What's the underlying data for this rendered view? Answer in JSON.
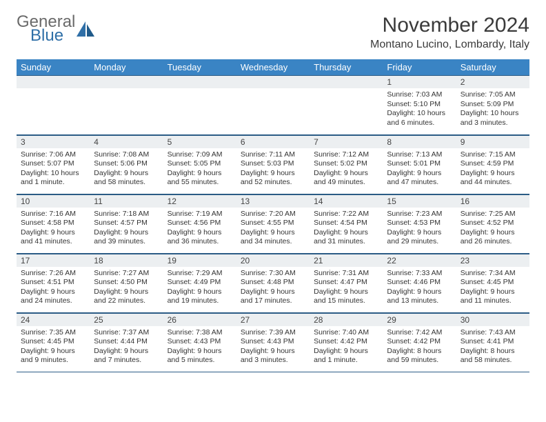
{
  "brand": {
    "line1": "General",
    "line2": "Blue"
  },
  "title": "November 2024",
  "location": "Montano Lucino, Lombardy, Italy",
  "colors": {
    "header_bg": "#3a84c4",
    "header_text": "#ffffff",
    "daynum_bg": "#eceff1",
    "border": "#2a5b85",
    "logo_gray": "#6a6a6a",
    "logo_blue": "#2f6fa7"
  },
  "weekdays": [
    "Sunday",
    "Monday",
    "Tuesday",
    "Wednesday",
    "Thursday",
    "Friday",
    "Saturday"
  ],
  "weeks": [
    [
      {
        "n": "",
        "lines": []
      },
      {
        "n": "",
        "lines": []
      },
      {
        "n": "",
        "lines": []
      },
      {
        "n": "",
        "lines": []
      },
      {
        "n": "",
        "lines": []
      },
      {
        "n": "1",
        "lines": [
          "Sunrise: 7:03 AM",
          "Sunset: 5:10 PM",
          "Daylight: 10 hours and 6 minutes."
        ]
      },
      {
        "n": "2",
        "lines": [
          "Sunrise: 7:05 AM",
          "Sunset: 5:09 PM",
          "Daylight: 10 hours and 3 minutes."
        ]
      }
    ],
    [
      {
        "n": "3",
        "lines": [
          "Sunrise: 7:06 AM",
          "Sunset: 5:07 PM",
          "Daylight: 10 hours and 1 minute."
        ]
      },
      {
        "n": "4",
        "lines": [
          "Sunrise: 7:08 AM",
          "Sunset: 5:06 PM",
          "Daylight: 9 hours and 58 minutes."
        ]
      },
      {
        "n": "5",
        "lines": [
          "Sunrise: 7:09 AM",
          "Sunset: 5:05 PM",
          "Daylight: 9 hours and 55 minutes."
        ]
      },
      {
        "n": "6",
        "lines": [
          "Sunrise: 7:11 AM",
          "Sunset: 5:03 PM",
          "Daylight: 9 hours and 52 minutes."
        ]
      },
      {
        "n": "7",
        "lines": [
          "Sunrise: 7:12 AM",
          "Sunset: 5:02 PM",
          "Daylight: 9 hours and 49 minutes."
        ]
      },
      {
        "n": "8",
        "lines": [
          "Sunrise: 7:13 AM",
          "Sunset: 5:01 PM",
          "Daylight: 9 hours and 47 minutes."
        ]
      },
      {
        "n": "9",
        "lines": [
          "Sunrise: 7:15 AM",
          "Sunset: 4:59 PM",
          "Daylight: 9 hours and 44 minutes."
        ]
      }
    ],
    [
      {
        "n": "10",
        "lines": [
          "Sunrise: 7:16 AM",
          "Sunset: 4:58 PM",
          "Daylight: 9 hours and 41 minutes."
        ]
      },
      {
        "n": "11",
        "lines": [
          "Sunrise: 7:18 AM",
          "Sunset: 4:57 PM",
          "Daylight: 9 hours and 39 minutes."
        ]
      },
      {
        "n": "12",
        "lines": [
          "Sunrise: 7:19 AM",
          "Sunset: 4:56 PM",
          "Daylight: 9 hours and 36 minutes."
        ]
      },
      {
        "n": "13",
        "lines": [
          "Sunrise: 7:20 AM",
          "Sunset: 4:55 PM",
          "Daylight: 9 hours and 34 minutes."
        ]
      },
      {
        "n": "14",
        "lines": [
          "Sunrise: 7:22 AM",
          "Sunset: 4:54 PM",
          "Daylight: 9 hours and 31 minutes."
        ]
      },
      {
        "n": "15",
        "lines": [
          "Sunrise: 7:23 AM",
          "Sunset: 4:53 PM",
          "Daylight: 9 hours and 29 minutes."
        ]
      },
      {
        "n": "16",
        "lines": [
          "Sunrise: 7:25 AM",
          "Sunset: 4:52 PM",
          "Daylight: 9 hours and 26 minutes."
        ]
      }
    ],
    [
      {
        "n": "17",
        "lines": [
          "Sunrise: 7:26 AM",
          "Sunset: 4:51 PM",
          "Daylight: 9 hours and 24 minutes."
        ]
      },
      {
        "n": "18",
        "lines": [
          "Sunrise: 7:27 AM",
          "Sunset: 4:50 PM",
          "Daylight: 9 hours and 22 minutes."
        ]
      },
      {
        "n": "19",
        "lines": [
          "Sunrise: 7:29 AM",
          "Sunset: 4:49 PM",
          "Daylight: 9 hours and 19 minutes."
        ]
      },
      {
        "n": "20",
        "lines": [
          "Sunrise: 7:30 AM",
          "Sunset: 4:48 PM",
          "Daylight: 9 hours and 17 minutes."
        ]
      },
      {
        "n": "21",
        "lines": [
          "Sunrise: 7:31 AM",
          "Sunset: 4:47 PM",
          "Daylight: 9 hours and 15 minutes."
        ]
      },
      {
        "n": "22",
        "lines": [
          "Sunrise: 7:33 AM",
          "Sunset: 4:46 PM",
          "Daylight: 9 hours and 13 minutes."
        ]
      },
      {
        "n": "23",
        "lines": [
          "Sunrise: 7:34 AM",
          "Sunset: 4:45 PM",
          "Daylight: 9 hours and 11 minutes."
        ]
      }
    ],
    [
      {
        "n": "24",
        "lines": [
          "Sunrise: 7:35 AM",
          "Sunset: 4:45 PM",
          "Daylight: 9 hours and 9 minutes."
        ]
      },
      {
        "n": "25",
        "lines": [
          "Sunrise: 7:37 AM",
          "Sunset: 4:44 PM",
          "Daylight: 9 hours and 7 minutes."
        ]
      },
      {
        "n": "26",
        "lines": [
          "Sunrise: 7:38 AM",
          "Sunset: 4:43 PM",
          "Daylight: 9 hours and 5 minutes."
        ]
      },
      {
        "n": "27",
        "lines": [
          "Sunrise: 7:39 AM",
          "Sunset: 4:43 PM",
          "Daylight: 9 hours and 3 minutes."
        ]
      },
      {
        "n": "28",
        "lines": [
          "Sunrise: 7:40 AM",
          "Sunset: 4:42 PM",
          "Daylight: 9 hours and 1 minute."
        ]
      },
      {
        "n": "29",
        "lines": [
          "Sunrise: 7:42 AM",
          "Sunset: 4:42 PM",
          "Daylight: 8 hours and 59 minutes."
        ]
      },
      {
        "n": "30",
        "lines": [
          "Sunrise: 7:43 AM",
          "Sunset: 4:41 PM",
          "Daylight: 8 hours and 58 minutes."
        ]
      }
    ]
  ]
}
